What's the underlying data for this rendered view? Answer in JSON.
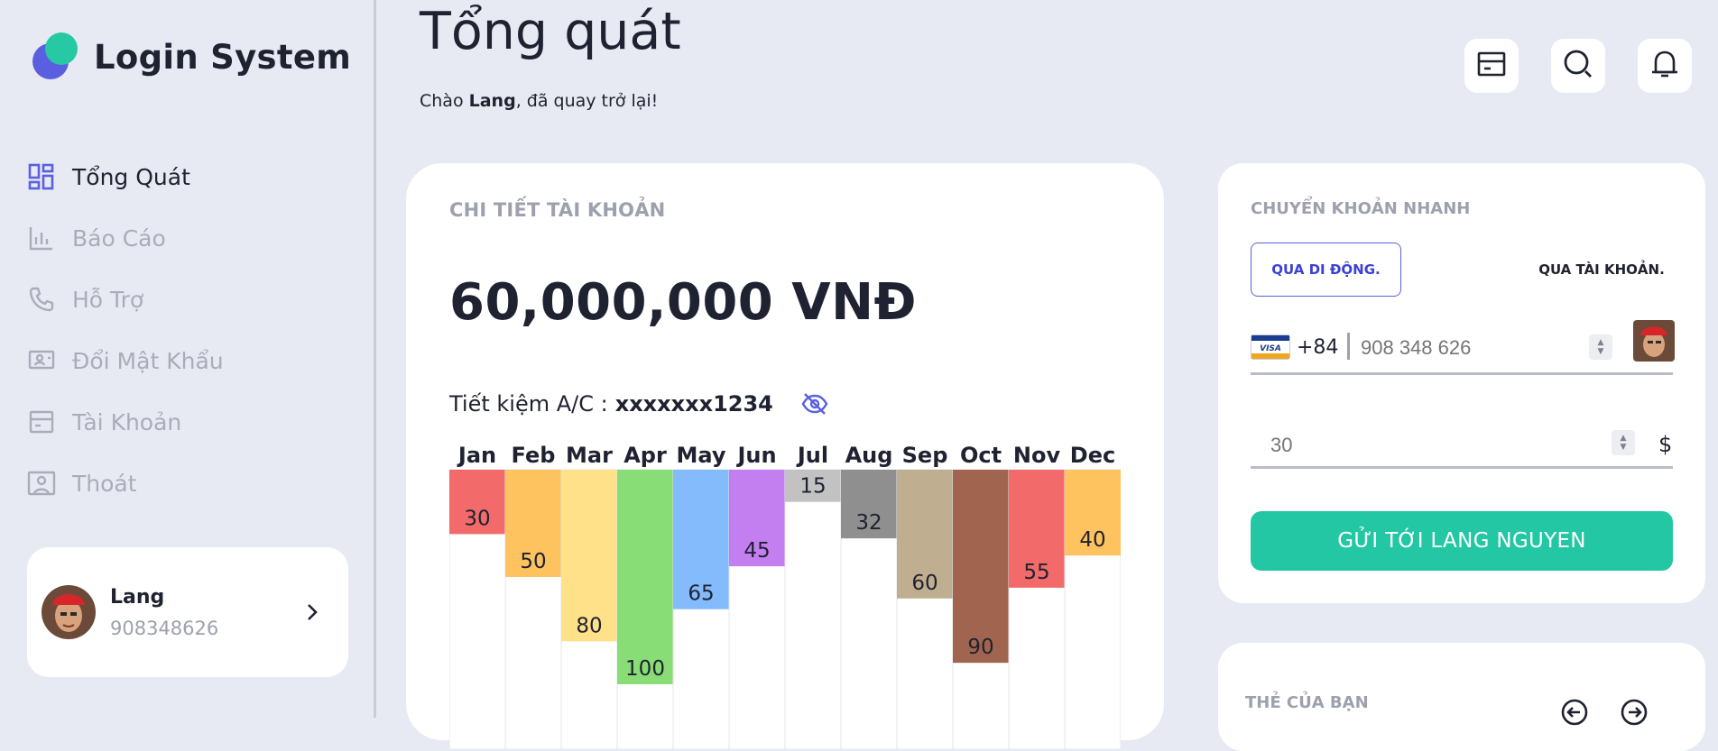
{
  "app": {
    "name": "Login System"
  },
  "sidebar": {
    "items": [
      {
        "label": "Tổng Quát",
        "icon": "dashboard-icon",
        "active": true
      },
      {
        "label": "Báo Cáo",
        "icon": "report-chart-icon"
      },
      {
        "label": "Hỗ Trợ",
        "icon": "phone-icon"
      },
      {
        "label": "Đổi Mật Khẩu",
        "icon": "monitor-user-icon"
      },
      {
        "label": "Tài Khoản",
        "icon": "wallet-icon"
      },
      {
        "label": "Thoát",
        "icon": "logout-portrait-icon"
      }
    ],
    "user": {
      "name": "Lang",
      "phone": "908348626"
    }
  },
  "header": {
    "title": "Tổng quát",
    "greeting_prefix": "Chào ",
    "greeting_name": "Lang",
    "greeting_suffix": ", đã quay trở lại!",
    "buttons": [
      "wallet-icon",
      "search-icon",
      "bell-icon"
    ]
  },
  "account": {
    "title": "CHI TIẾT TÀI KHOẢN",
    "balance": "60,000,000 VNĐ",
    "savings_label": "Tiết kiệm A/C :",
    "savings_number": "xxxxxxx1234"
  },
  "chart_data": {
    "type": "bar",
    "categories": [
      "Jan",
      "Feb",
      "Mar",
      "Apr",
      "May",
      "Jun",
      "Jul",
      "Aug",
      "Sep",
      "Oct",
      "Nov",
      "Dec"
    ],
    "values": [
      30,
      50,
      80,
      100,
      65,
      45,
      15,
      32,
      60,
      90,
      55,
      40
    ],
    "colors": [
      "#f36a6a",
      "#fec25f",
      "#ffe18a",
      "#89dd76",
      "#84bbfd",
      "#c37ff0",
      "#c2c2c2",
      "#8f8f8f",
      "#bfae8f",
      "#a1654f",
      "#f36a6a",
      "#fec25f"
    ]
  },
  "quick_transfer": {
    "title": "CHUYỂN KHOẢN NHANH",
    "tab_mobile": "QUA DI ĐỘNG.",
    "tab_account": "QUA TÀI KHOẢN.",
    "country_code": "+84",
    "phone_placeholder": "908 348 626",
    "amount_placeholder": "30",
    "currency": "$",
    "send_label": "GỬI TỚI LANG NGUYEN"
  },
  "your_card": {
    "title": "THẺ CỦA BẠN"
  },
  "colors": {
    "accent": "#5a5fe0",
    "teal": "#23c7a4",
    "background": "#e8eaf3"
  }
}
